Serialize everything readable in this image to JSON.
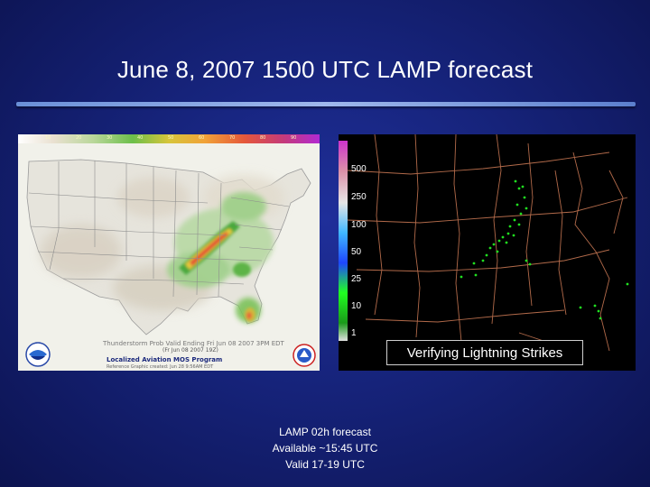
{
  "slide": {
    "title": "June 8, 2007 1500 UTC LAMP forecast",
    "colors": {
      "background": "#16237a",
      "accent_rule": "#9fb8ec",
      "text": "#ffffff"
    }
  },
  "left_map": {
    "scale_ticks": [
      "10",
      "20",
      "30",
      "40",
      "50",
      "60",
      "70",
      "80",
      "90"
    ],
    "footer_main": "Thunderstorm Prob Valid Ending Fri Jun 08 2007 3PM EDT",
    "footer_sub": "(Fr  Jun 08 2007 19Z)",
    "footer_program": "Localized Aviation MOS Program",
    "footer_credit": "Reference   Graphic created: Jun 28 9:56AM EDT",
    "logos": [
      "noaa-logo",
      "nws-logo"
    ]
  },
  "right_panel": {
    "legend": [
      "500",
      "250",
      "100",
      "50",
      "25",
      "10",
      "1"
    ],
    "caption": "Verifying Lightning Strikes"
  },
  "note": {
    "line1": "LAMP 02h forecast",
    "line2": "Available ~15:45 UTC",
    "line3": "Valid 17-19 UTC"
  }
}
